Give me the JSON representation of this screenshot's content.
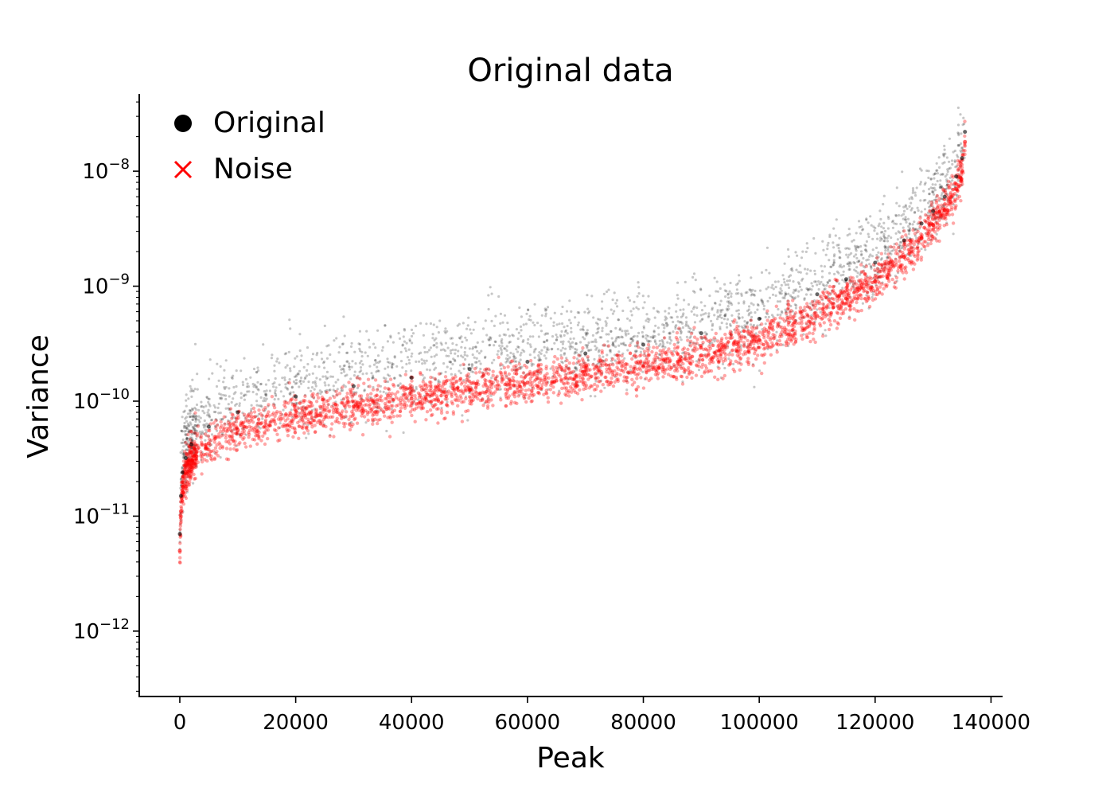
{
  "chart_data": {
    "type": "scatter",
    "title": "Original data",
    "xlabel": "Peak",
    "ylabel": "Variance",
    "xlim": [
      -7000,
      142000
    ],
    "ylim": [
      2.7e-13,
      4.7e-08
    ],
    "yscale": "log",
    "grid": false,
    "legend": {
      "placement": "top-left"
    },
    "x_ticks": [
      0,
      20000,
      40000,
      60000,
      80000,
      100000,
      120000,
      140000
    ],
    "x_tick_labels": [
      "0",
      "20000",
      "40000",
      "60000",
      "80000",
      "100000",
      "120000",
      "140000"
    ],
    "y_ticks": [
      {
        "value": 1e-08,
        "base": "10",
        "exp": "−8"
      },
      {
        "value": 1e-09,
        "base": "10",
        "exp": "−9"
      },
      {
        "value": 1e-10,
        "base": "10",
        "exp": "−10"
      },
      {
        "value": 1e-11,
        "base": "10",
        "exp": "−11"
      },
      {
        "value": 1e-12,
        "base": "10",
        "exp": "−12"
      }
    ],
    "series": [
      {
        "name": "Original",
        "marker": "circle",
        "color": "#000000",
        "x": [
          0,
          200,
          500,
          1000,
          2000,
          5000,
          10000,
          20000,
          30000,
          40000,
          50000,
          60000,
          70000,
          80000,
          90000,
          100000,
          110000,
          115000,
          120000,
          125000,
          128000,
          130000,
          132000,
          134000,
          135000,
          135500
        ],
        "y": [
          7e-12,
          1.5e-11,
          2.4e-11,
          3.2e-11,
          4.2e-11,
          6e-11,
          8e-11,
          1.1e-10,
          1.35e-10,
          1.6e-10,
          1.9e-10,
          2.2e-10,
          2.6e-10,
          3.1e-10,
          3.9e-10,
          5.2e-10,
          8.5e-10,
          1.15e-09,
          1.6e-09,
          2.5e-09,
          3.5e-09,
          4.5e-09,
          6e-09,
          9e-09,
          1.3e-08,
          2.2e-08
        ]
      },
      {
        "name": "Noise",
        "marker": "x",
        "color": "#ff0000",
        "x": [
          0,
          200,
          500,
          1000,
          2000,
          5000,
          10000,
          20000,
          30000,
          40000,
          50000,
          60000,
          70000,
          80000,
          90000,
          100000,
          110000,
          115000,
          120000,
          125000,
          128000,
          130000,
          132000,
          134000,
          135000,
          135500
        ],
        "y": [
          5e-12,
          1.1e-11,
          1.8e-11,
          2.4e-11,
          3e-11,
          4.3e-11,
          5.6e-11,
          7.5e-11,
          9e-11,
          1.05e-10,
          1.25e-10,
          1.45e-10,
          1.7e-10,
          2e-10,
          2.5e-10,
          3.4e-10,
          5.5e-10,
          7.8e-10,
          1.1e-09,
          1.8e-09,
          2.6e-09,
          3.4e-09,
          4.6e-09,
          7e-09,
          1e-08,
          1.8e-08
        ]
      }
    ]
  }
}
